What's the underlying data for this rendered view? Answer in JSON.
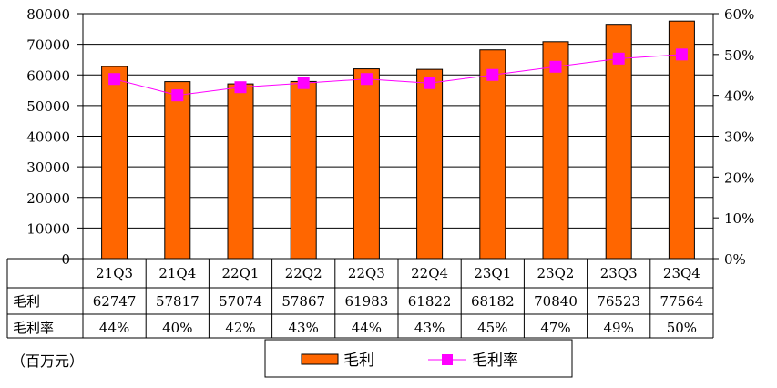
{
  "chart_data": {
    "type": "bar",
    "categories": [
      "21Q3",
      "21Q4",
      "22Q1",
      "22Q2",
      "22Q3",
      "22Q4",
      "23Q1",
      "23Q2",
      "23Q3",
      "23Q4"
    ],
    "series": [
      {
        "name": "毛利",
        "type": "bar",
        "axis": "left",
        "values": [
          62747,
          57817,
          57074,
          57867,
          61983,
          61822,
          68182,
          70840,
          76523,
          77564
        ],
        "color": "#FF6600"
      },
      {
        "name": "毛利率",
        "type": "line",
        "axis": "right",
        "values": [
          44,
          40,
          42,
          43,
          44,
          43,
          45,
          47,
          49,
          50
        ],
        "color": "#FF00FF"
      }
    ],
    "y_left": {
      "ylim": [
        0,
        80000
      ],
      "ticks": [
        "0",
        "10000",
        "20000",
        "30000",
        "40000",
        "50000",
        "60000",
        "70000",
        "80000"
      ]
    },
    "y_right": {
      "ylim": [
        0,
        60
      ],
      "ticks": [
        "0%",
        "10%",
        "20%",
        "30%",
        "40%",
        "50%",
        "60%"
      ]
    },
    "grid": true,
    "table": {
      "row_labels": [
        "毛利",
        "毛利率"
      ],
      "rows": [
        [
          "62747",
          "57817",
          "57074",
          "57867",
          "61983",
          "61822",
          "68182",
          "70840",
          "76523",
          "77564"
        ],
        [
          "44%",
          "40%",
          "42%",
          "43%",
          "44%",
          "43%",
          "45%",
          "47%",
          "49%",
          "50%"
        ]
      ]
    },
    "legend": {
      "position": "bottom",
      "items": [
        "毛利",
        "毛利率"
      ]
    },
    "unit_label": "（百万元）"
  }
}
